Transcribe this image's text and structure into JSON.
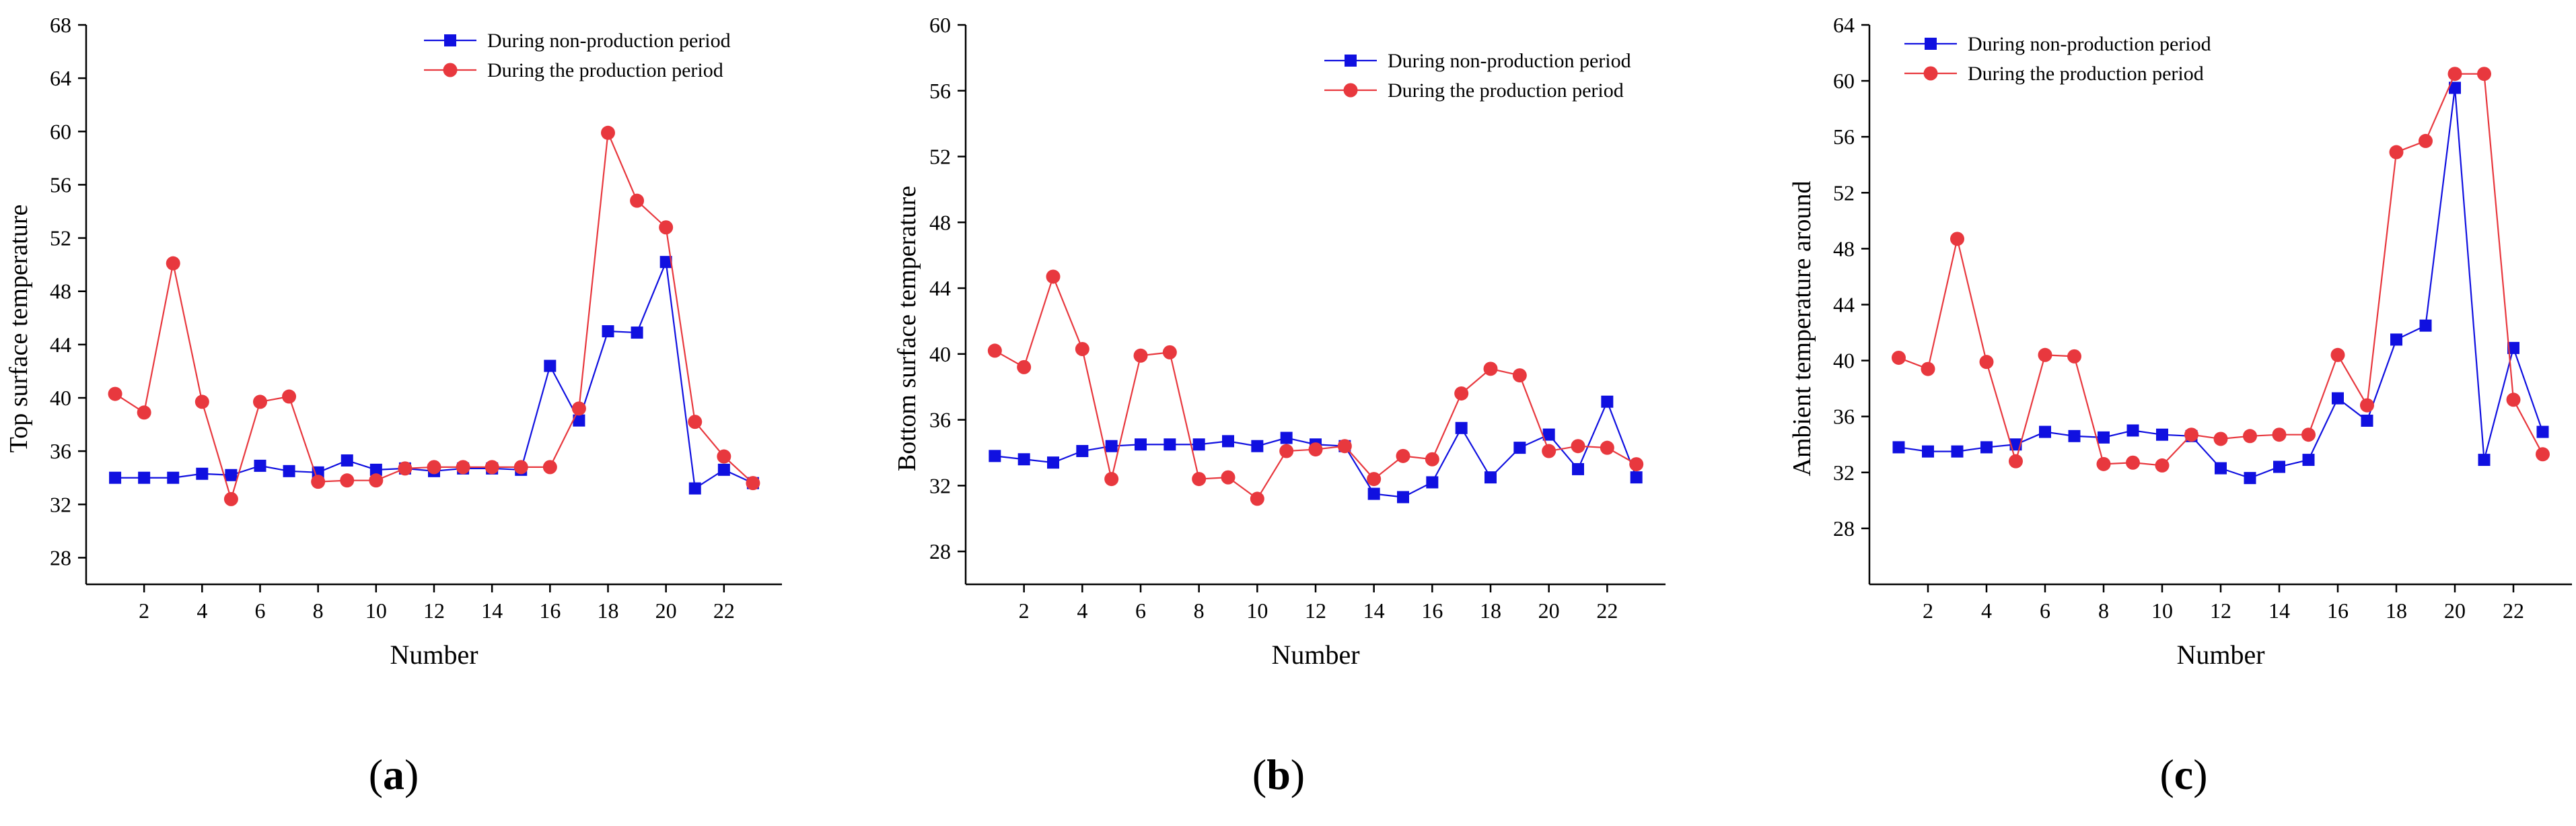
{
  "colors": {
    "non_production": "#1010e0",
    "production": "#e8383e",
    "axis": "#000000"
  },
  "chart_data": [
    {
      "type": "line",
      "panel_label": "a",
      "xlabel": "Number",
      "ylabel": "Top surface temperature",
      "x": [
        1,
        2,
        3,
        4,
        5,
        6,
        7,
        8,
        9,
        10,
        11,
        12,
        13,
        14,
        15,
        16,
        17,
        18,
        19,
        20,
        21,
        22,
        23
      ],
      "xlim": [
        0,
        24
      ],
      "ylim": [
        26,
        68
      ],
      "xticks": [
        2,
        4,
        6,
        8,
        10,
        12,
        14,
        16,
        18,
        20,
        22
      ],
      "yticks": [
        28,
        32,
        36,
        40,
        44,
        48,
        52,
        56,
        60,
        64,
        68
      ],
      "legend_position": "top-right",
      "series": [
        {
          "name": "During non-production period",
          "marker": "square",
          "values": [
            34.0,
            34.0,
            34.0,
            34.3,
            34.2,
            34.9,
            34.5,
            34.4,
            35.3,
            34.6,
            34.7,
            34.5,
            34.7,
            34.7,
            34.6,
            42.4,
            38.3,
            45.0,
            44.9,
            50.2,
            33.2,
            34.6,
            33.6
          ]
        },
        {
          "name": "During the production period",
          "marker": "circle",
          "values": [
            40.3,
            38.9,
            50.1,
            39.7,
            32.4,
            39.7,
            40.1,
            33.7,
            33.8,
            33.8,
            34.7,
            34.8,
            34.8,
            34.8,
            34.8,
            34.8,
            39.2,
            59.9,
            54.8,
            52.8,
            38.2,
            35.6,
            33.6
          ]
        }
      ]
    },
    {
      "type": "line",
      "panel_label": "b",
      "xlabel": "Number",
      "ylabel": "Bottom surface temperature",
      "x": [
        1,
        2,
        3,
        4,
        5,
        6,
        7,
        8,
        9,
        10,
        11,
        12,
        13,
        14,
        15,
        16,
        17,
        18,
        19,
        20,
        21,
        22,
        23
      ],
      "xlim": [
        0,
        24
      ],
      "ylim": [
        26,
        60
      ],
      "xticks": [
        2,
        4,
        6,
        8,
        10,
        12,
        14,
        16,
        18,
        20,
        22
      ],
      "yticks": [
        28,
        32,
        36,
        40,
        44,
        48,
        52,
        56,
        60
      ],
      "legend_position": "top-right",
      "series": [
        {
          "name": "During non-production period",
          "marker": "square",
          "values": [
            33.8,
            33.6,
            33.4,
            34.1,
            34.4,
            34.5,
            34.5,
            34.5,
            34.7,
            34.4,
            34.9,
            34.5,
            34.4,
            31.5,
            31.3,
            32.2,
            35.5,
            32.5,
            34.3,
            35.1,
            33.0,
            37.1,
            32.5
          ]
        },
        {
          "name": "During the production period",
          "marker": "circle",
          "values": [
            40.2,
            39.2,
            44.7,
            40.3,
            32.4,
            39.9,
            40.1,
            32.4,
            32.5,
            31.2,
            34.1,
            34.2,
            34.4,
            32.4,
            33.8,
            33.6,
            37.6,
            39.1,
            38.7,
            34.1,
            34.4,
            34.3,
            33.3
          ]
        }
      ]
    },
    {
      "type": "line",
      "panel_label": "c",
      "xlabel": "Number",
      "ylabel": "Ambient temperature around",
      "x": [
        1,
        2,
        3,
        4,
        5,
        6,
        7,
        8,
        9,
        10,
        11,
        12,
        13,
        14,
        15,
        16,
        17,
        18,
        19,
        20,
        21,
        22,
        23
      ],
      "xlim": [
        0,
        24
      ],
      "ylim": [
        24,
        64
      ],
      "xticks": [
        2,
        4,
        6,
        8,
        10,
        12,
        14,
        16,
        18,
        20,
        22
      ],
      "yticks": [
        28,
        32,
        36,
        40,
        44,
        48,
        52,
        56,
        60,
        64
      ],
      "legend_position": "top-left",
      "series": [
        {
          "name": "During non-production period",
          "marker": "square",
          "values": [
            33.8,
            33.5,
            33.5,
            33.8,
            34.0,
            34.9,
            34.6,
            34.5,
            35.0,
            34.7,
            34.6,
            32.3,
            31.6,
            32.4,
            32.9,
            37.3,
            35.7,
            41.5,
            42.5,
            59.5,
            32.9,
            40.9,
            34.9
          ]
        },
        {
          "name": "During the production period",
          "marker": "circle",
          "values": [
            40.2,
            39.4,
            48.7,
            39.9,
            32.8,
            40.4,
            40.3,
            32.6,
            32.7,
            32.5,
            34.7,
            34.4,
            34.6,
            34.7,
            34.7,
            40.4,
            36.8,
            54.9,
            55.7,
            60.5,
            60.5,
            37.2,
            33.3
          ]
        }
      ]
    }
  ]
}
